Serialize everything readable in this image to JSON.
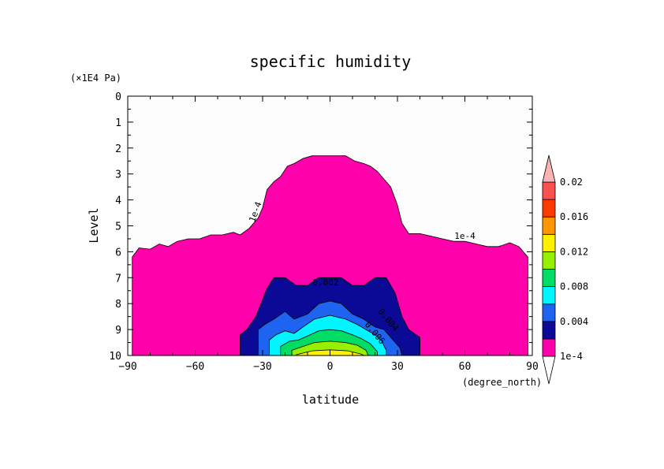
{
  "chart_data": {
    "type": "heatmap",
    "title": "specific humidity",
    "xlabel": "latitude",
    "ylabel": "Level",
    "x_units": "(degree_north)",
    "y_units": "(×1E4 Pa)",
    "xlim": [
      -90,
      90
    ],
    "ylim": [
      10,
      0
    ],
    "y_axis_inverted": true,
    "x_ticks": [
      "-90",
      "-60",
      "-30",
      "0",
      "30",
      "60",
      "90"
    ],
    "y_ticks": [
      "0",
      "1",
      "2",
      "3",
      "4",
      "5",
      "6",
      "7",
      "8",
      "9",
      "10"
    ],
    "colorbar": {
      "labels": [
        "1e-4",
        "0.004",
        "0.008",
        "0.012",
        "0.016",
        "0.02"
      ],
      "levels": [
        0.0001,
        0.002,
        0.004,
        0.006,
        0.008,
        0.01,
        0.012,
        0.014,
        0.016,
        0.018,
        0.02
      ],
      "colors": [
        "#ff00aa",
        "#0a0a96",
        "#1e64f0",
        "#00f5ff",
        "#00dc64",
        "#96f000",
        "#fff000",
        "#ff9600",
        "#ff3c00",
        "#fa5050",
        "#fab4b4"
      ],
      "under_color": "#ffffff"
    },
    "contour_labels": [
      {
        "text": "1e-4",
        "lat": -32,
        "lev": 4.5
      },
      {
        "text": "1e-4",
        "lat": 60,
        "lev": 5.5
      },
      {
        "text": "0.002",
        "lat": -2,
        "lev": 7.3
      },
      {
        "text": "0.004",
        "lat": 25,
        "lev": 8.7
      },
      {
        "text": "0.006",
        "lat": 19,
        "lev": 9.2
      }
    ],
    "contours": [
      {
        "level": 0.0001,
        "color": "#ff00aa",
        "boundary": [
          [
            -88,
            10
          ],
          [
            -88,
            6.2
          ],
          [
            -85,
            5.85
          ],
          [
            -80,
            5.9
          ],
          [
            -76,
            5.7
          ],
          [
            -72,
            5.8
          ],
          [
            -68,
            5.6
          ],
          [
            -63,
            5.5
          ],
          [
            -58,
            5.5
          ],
          [
            -53,
            5.35
          ],
          [
            -48,
            5.35
          ],
          [
            -43,
            5.25
          ],
          [
            -40,
            5.35
          ],
          [
            -36,
            5.1
          ],
          [
            -32,
            4.7
          ],
          [
            -30,
            4.3
          ],
          [
            -28,
            3.6
          ],
          [
            -25,
            3.3
          ],
          [
            -22,
            3.1
          ],
          [
            -19,
            2.7
          ],
          [
            -16,
            2.6
          ],
          [
            -12,
            2.4
          ],
          [
            -8,
            2.3
          ],
          [
            0,
            2.3
          ],
          [
            7,
            2.3
          ],
          [
            11,
            2.5
          ],
          [
            15,
            2.6
          ],
          [
            18,
            2.7
          ],
          [
            21,
            2.9
          ],
          [
            24,
            3.2
          ],
          [
            27,
            3.5
          ],
          [
            30,
            4.2
          ],
          [
            32,
            4.9
          ],
          [
            35,
            5.3
          ],
          [
            40,
            5.3
          ],
          [
            45,
            5.4
          ],
          [
            50,
            5.5
          ],
          [
            55,
            5.6
          ],
          [
            60,
            5.6
          ],
          [
            65,
            5.7
          ],
          [
            70,
            5.8
          ],
          [
            75,
            5.8
          ],
          [
            80,
            5.65
          ],
          [
            84,
            5.8
          ],
          [
            88,
            6.2
          ],
          [
            88,
            10
          ]
        ]
      },
      {
        "level": 0.002,
        "color": "#0a0a96",
        "boundary": [
          [
            -40,
            10
          ],
          [
            -40,
            9.2
          ],
          [
            -37,
            9.0
          ],
          [
            -33,
            8.5
          ],
          [
            -28,
            7.4
          ],
          [
            -25,
            7.0
          ],
          [
            -20,
            7.0
          ],
          [
            -15,
            7.3
          ],
          [
            -10,
            7.3
          ],
          [
            -5,
            7.0
          ],
          [
            5,
            7.0
          ],
          [
            10,
            7.3
          ],
          [
            15,
            7.3
          ],
          [
            20,
            7.0
          ],
          [
            25,
            7.0
          ],
          [
            29,
            7.6
          ],
          [
            32,
            8.5
          ],
          [
            35,
            9.0
          ],
          [
            40,
            9.3
          ],
          [
            40,
            10
          ]
        ]
      },
      {
        "level": 0.004,
        "color": "#1e64f0",
        "boundary": [
          [
            -32,
            10
          ],
          [
            -32,
            9.0
          ],
          [
            -29,
            8.8
          ],
          [
            -25,
            8.6
          ],
          [
            -20,
            8.3
          ],
          [
            -16,
            8.6
          ],
          [
            -10,
            8.4
          ],
          [
            -5,
            8.0
          ],
          [
            0,
            7.9
          ],
          [
            5,
            8.0
          ],
          [
            10,
            8.4
          ],
          [
            15,
            8.6
          ],
          [
            20,
            8.9
          ],
          [
            24,
            9.0
          ],
          [
            28,
            9.4
          ],
          [
            31,
            9.7
          ],
          [
            32,
            10
          ]
        ]
      },
      {
        "level": 0.006,
        "color": "#00f5ff",
        "boundary": [
          [
            -27,
            10
          ],
          [
            -27,
            9.4
          ],
          [
            -24,
            9.2
          ],
          [
            -20,
            9.05
          ],
          [
            -16,
            9.15
          ],
          [
            -12,
            8.9
          ],
          [
            -7,
            8.6
          ],
          [
            0,
            8.45
          ],
          [
            7,
            8.6
          ],
          [
            12,
            8.8
          ],
          [
            16,
            9.0
          ],
          [
            20,
            9.2
          ],
          [
            23,
            9.45
          ],
          [
            25,
            9.8
          ],
          [
            25,
            10
          ]
        ]
      },
      {
        "level": 0.008,
        "color": "#00dc64",
        "boundary": [
          [
            -22,
            10
          ],
          [
            -22,
            9.65
          ],
          [
            -18,
            9.45
          ],
          [
            -14,
            9.4
          ],
          [
            -10,
            9.25
          ],
          [
            -5,
            9.05
          ],
          [
            0,
            9.0
          ],
          [
            5,
            9.05
          ],
          [
            10,
            9.2
          ],
          [
            14,
            9.35
          ],
          [
            18,
            9.55
          ],
          [
            21,
            9.85
          ],
          [
            21,
            10
          ]
        ]
      },
      {
        "level": 0.01,
        "color": "#96f000",
        "boundary": [
          [
            -17,
            10
          ],
          [
            -17,
            9.8
          ],
          [
            -12,
            9.65
          ],
          [
            -7,
            9.5
          ],
          [
            0,
            9.45
          ],
          [
            7,
            9.5
          ],
          [
            12,
            9.6
          ],
          [
            16,
            9.8
          ],
          [
            17,
            10
          ]
        ]
      },
      {
        "level": 0.012,
        "color": "#fff000",
        "boundary": [
          [
            -15,
            10
          ],
          [
            -15,
            9.97
          ],
          [
            -8,
            9.82
          ],
          [
            0,
            9.78
          ],
          [
            8,
            9.82
          ],
          [
            14,
            9.95
          ],
          [
            15,
            10
          ]
        ]
      }
    ],
    "grid": false,
    "legend_position": "right"
  }
}
